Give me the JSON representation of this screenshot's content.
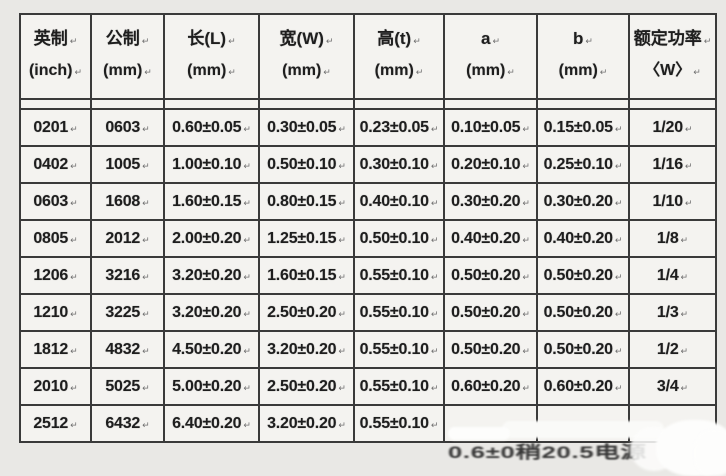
{
  "colors": {
    "page_background": "#e9e8e5",
    "cell_background": "#f4f3f0",
    "grid_border": "#3a3a3a",
    "text": "#1e1e1e"
  },
  "marks": {
    "paragraph": "↵"
  },
  "table": {
    "columns": [
      {
        "title": "英制",
        "unit": "(inch)"
      },
      {
        "title": "公制",
        "unit": "(mm)"
      },
      {
        "title": "长(L)",
        "unit": "(mm)"
      },
      {
        "title": "宽(W)",
        "unit": "(mm)"
      },
      {
        "title": "高(t)",
        "unit": "(mm)"
      },
      {
        "title": "a",
        "unit": "(mm)"
      },
      {
        "title": "b",
        "unit": "(mm)"
      },
      {
        "title": "额定功率",
        "unit": "〈W〉"
      }
    ],
    "rows": [
      [
        "0201",
        "0603",
        "0.60±0.05",
        "0.30±0.05",
        "0.23±0.05",
        "0.10±0.05",
        "0.15±0.05",
        "1/20"
      ],
      [
        "0402",
        "1005",
        "1.00±0.10",
        "0.50±0.10",
        "0.30±0.10",
        "0.20±0.10",
        "0.25±0.10",
        "1/16"
      ],
      [
        "0603",
        "1608",
        "1.60±0.15",
        "0.80±0.15",
        "0.40±0.10",
        "0.30±0.20",
        "0.30±0.20",
        "1/10"
      ],
      [
        "0805",
        "2012",
        "2.00±0.20",
        "1.25±0.15",
        "0.50±0.10",
        "0.40±0.20",
        "0.40±0.20",
        "1/8"
      ],
      [
        "1206",
        "3216",
        "3.20±0.20",
        "1.60±0.15",
        "0.55±0.10",
        "0.50±0.20",
        "0.50±0.20",
        "1/4"
      ],
      [
        "1210",
        "3225",
        "3.20±0.20",
        "2.50±0.20",
        "0.55±0.10",
        "0.50±0.20",
        "0.50±0.20",
        "1/3"
      ],
      [
        "1812",
        "4832",
        "4.50±0.20",
        "3.20±0.20",
        "0.55±0.10",
        "0.50±0.20",
        "0.50±0.20",
        "1/2"
      ],
      [
        "2010",
        "5025",
        "5.00±0.20",
        "2.50±0.20",
        "0.55±0.10",
        "0.60±0.20",
        "0.60±0.20",
        "3/4"
      ],
      [
        "2512",
        "6432",
        "6.40±0.20",
        "3.20±0.20",
        "0.55±0.10",
        "",
        "",
        ""
      ]
    ]
  },
  "watermark": {
    "visible_text": "0.6±0稍20.5电源"
  }
}
